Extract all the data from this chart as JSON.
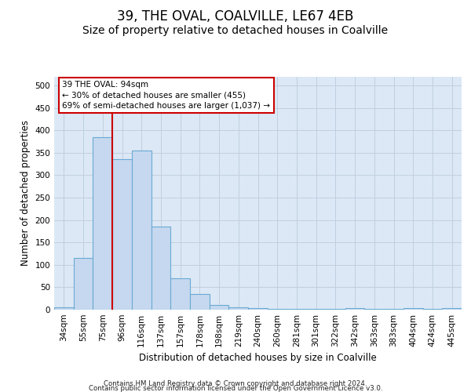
{
  "title": "39, THE OVAL, COALVILLE, LE67 4EB",
  "subtitle": "Size of property relative to detached houses in Coalville",
  "xlabel": "Distribution of detached houses by size in Coalville",
  "ylabel": "Number of detached properties",
  "footer_line1": "Contains HM Land Registry data © Crown copyright and database right 2024.",
  "footer_line2": "Contains public sector information licensed under the Open Government Licence v3.0.",
  "categories": [
    "34sqm",
    "55sqm",
    "75sqm",
    "96sqm",
    "116sqm",
    "137sqm",
    "157sqm",
    "178sqm",
    "198sqm",
    "219sqm",
    "240sqm",
    "260sqm",
    "281sqm",
    "301sqm",
    "322sqm",
    "342sqm",
    "363sqm",
    "383sqm",
    "404sqm",
    "424sqm",
    "445sqm"
  ],
  "values": [
    5,
    115,
    385,
    335,
    355,
    185,
    70,
    35,
    10,
    5,
    3,
    2,
    2,
    2,
    2,
    3,
    2,
    2,
    3,
    2,
    3
  ],
  "bar_color": "#c5d8ef",
  "bar_edge_color": "#6aaad4",
  "reference_line_color": "#cc0000",
  "annotation_text": "39 THE OVAL: 94sqm\n← 30% of detached houses are smaller (455)\n69% of semi-detached houses are larger (1,037) →",
  "annotation_box_color": "white",
  "annotation_box_edge_color": "#cc0000",
  "ylim": [
    0,
    520
  ],
  "yticks": [
    0,
    50,
    100,
    150,
    200,
    250,
    300,
    350,
    400,
    450,
    500
  ],
  "grid_color": "#c0cfe0",
  "background_color": "#dce8f5",
  "title_fontsize": 12,
  "subtitle_fontsize": 10,
  "axis_label_fontsize": 8.5,
  "tick_fontsize": 7.5,
  "footer_fontsize": 6.2
}
